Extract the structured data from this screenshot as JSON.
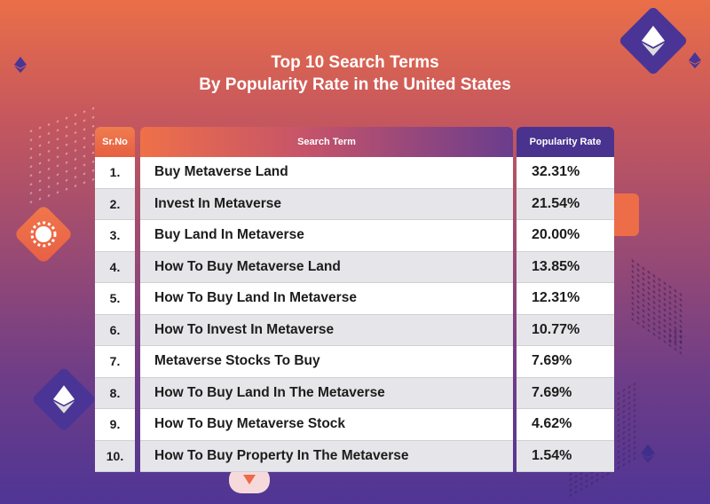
{
  "colors": {
    "bg_top": "#ea6f48",
    "bg_bottom": "#4f3595",
    "header_orange": "#ee7048",
    "header_purple": "#49338f",
    "row_even": "#e6e6ea"
  },
  "icons": [
    "ethereum-icon",
    "gear-icon",
    "arrow-down-icon"
  ],
  "title": {
    "line1": "Top 10 Search Terms",
    "line2": "By Popularity Rate in the United States"
  },
  "chart_data": {
    "type": "table",
    "columns": [
      "Sr.No",
      "Search Term",
      "Popularity Rate"
    ],
    "rows": [
      {
        "sr": "1.",
        "term": "Buy Metaverse Land",
        "rate": "32.31%"
      },
      {
        "sr": "2.",
        "term": "Invest In Metaverse",
        "rate": "21.54%"
      },
      {
        "sr": "3.",
        "term": "Buy Land In Metaverse",
        "rate": "20.00%"
      },
      {
        "sr": "4.",
        "term": "How To Buy Metaverse Land",
        "rate": "13.85%"
      },
      {
        "sr": "5.",
        "term": "How To Buy Land In Metaverse",
        "rate": "12.31%"
      },
      {
        "sr": "6.",
        "term": "How To Invest In Metaverse",
        "rate": "10.77%"
      },
      {
        "sr": "7.",
        "term": "Metaverse Stocks To Buy",
        "rate": "7.69%"
      },
      {
        "sr": "8.",
        "term": "How To Buy Land In The Metaverse",
        "rate": "7.69%"
      },
      {
        "sr": "9.",
        "term": "How To Buy Metaverse Stock",
        "rate": "4.62%"
      },
      {
        "sr": "10.",
        "term": "How To Buy Property In The Metaverse",
        "rate": "1.54%"
      }
    ]
  }
}
